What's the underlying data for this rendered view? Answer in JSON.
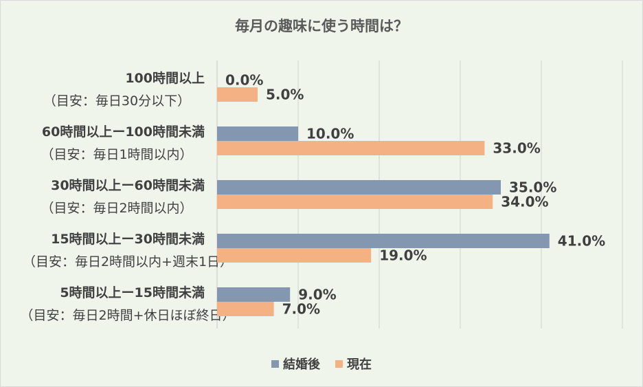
{
  "chart_data": {
    "type": "bar",
    "orientation": "horizontal",
    "title": "毎月の趣味に使う時間は？",
    "categories": [
      {
        "label": "100時間以上",
        "sub": "（目安：毎日30分以下）"
      },
      {
        "label": "60時間以上ー100時間未満",
        "sub": "（目安：毎日1時間以内）"
      },
      {
        "label": "30時間以上ー60時間未満",
        "sub": "（目安：毎日2時間以内）"
      },
      {
        "label": "15時間以上ー30時間未満",
        "sub": "（目安：毎日2時間以内+週末1日）"
      },
      {
        "label": "5時間以上ー15時間未満",
        "sub": "（目安：毎日2時間+休日ほぼ終日）"
      }
    ],
    "series": [
      {
        "name": "結婚後",
        "color": "#8497b0",
        "values": [
          0.0,
          10.0,
          35.0,
          41.0,
          9.0
        ]
      },
      {
        "name": "現在",
        "color": "#f4b183",
        "values": [
          5.0,
          33.0,
          34.0,
          19.0,
          7.0
        ]
      }
    ],
    "value_suffix": "%",
    "xlim": [
      0,
      50
    ],
    "grid": true,
    "legend_position": "bottom"
  }
}
